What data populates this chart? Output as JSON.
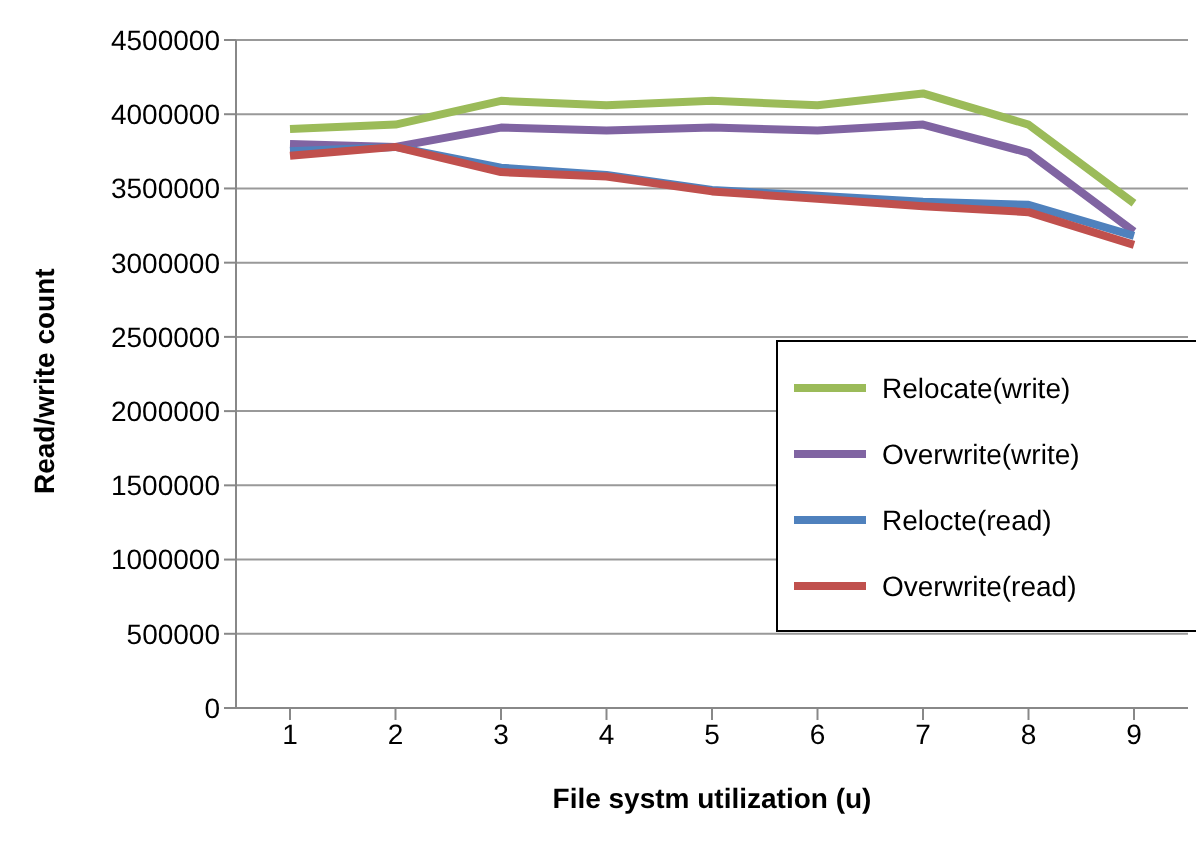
{
  "chart_data": {
    "type": "line",
    "xlabel": "File systm utilization (u)",
    "ylabel": "Read/write count",
    "categories": [
      "1",
      "2",
      "3",
      "4",
      "5",
      "6",
      "7",
      "8",
      "9"
    ],
    "series": [
      {
        "name": "Relocate(write)",
        "color": "#9bbb59",
        "values": [
          3900000,
          3930000,
          4090000,
          4060000,
          4090000,
          4060000,
          4140000,
          3930000,
          3400000
        ]
      },
      {
        "name": "Overwrite(write)",
        "color": "#8064a2",
        "values": [
          3800000,
          3780000,
          3910000,
          3890000,
          3910000,
          3890000,
          3930000,
          3740000,
          3210000
        ]
      },
      {
        "name": "Relocte(read)",
        "color": "#4f81bd",
        "values": [
          3750000,
          3780000,
          3640000,
          3590000,
          3490000,
          3450000,
          3410000,
          3390000,
          3180000
        ]
      },
      {
        "name": "Overwrite(read)",
        "color": "#c0504d",
        "values": [
          3720000,
          3780000,
          3610000,
          3580000,
          3480000,
          3430000,
          3380000,
          3340000,
          3120000
        ]
      }
    ],
    "ylim": [
      0,
      4500000
    ],
    "yticks": [
      0,
      500000,
      1000000,
      1500000,
      2000000,
      2500000,
      3000000,
      3500000,
      4000000,
      4500000
    ],
    "grid": "y",
    "legend": "bottom right",
    "marker": "none",
    "line_style": "solid"
  }
}
